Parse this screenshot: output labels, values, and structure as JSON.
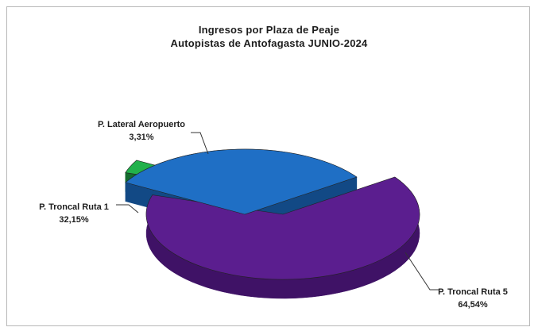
{
  "chart_data": {
    "type": "pie",
    "title_line1": "Ingresos por Plaza de Peaje",
    "title_line2": "Autopistas de Antofagasta JUNIO-2024",
    "slices": [
      {
        "name": "P. Troncal Ruta 5",
        "value": 64.54,
        "label_value": "64,54%",
        "color": "#5b1e8f",
        "side_color": "#3f1266"
      },
      {
        "name": "P. Lateral Aeropuerto",
        "value": 3.31,
        "label_value": "3,31%",
        "color": "#22b14c",
        "side_color": "#146b2e"
      },
      {
        "name": "P. Troncal Ruta 1",
        "value": 32.15,
        "label_value": "32,15%",
        "color": "#1f6fc5",
        "side_color": "#124985"
      }
    ],
    "style": "3d-exploded",
    "legend": "none"
  }
}
